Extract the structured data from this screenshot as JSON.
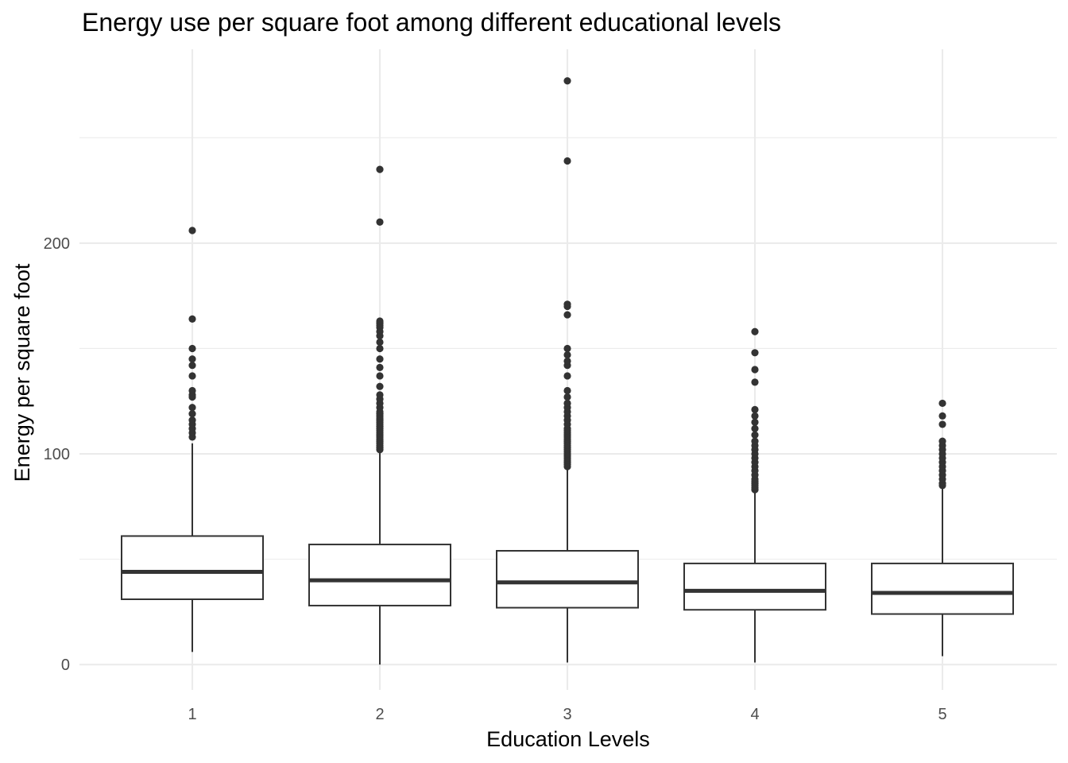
{
  "chart_data": {
    "type": "box",
    "title": "Energy use per square foot among different educational levels",
    "xlabel": "Education Levels",
    "ylabel": "Energy per square foot",
    "ylim": [
      -12,
      292
    ],
    "yticks": [
      0,
      100,
      200
    ],
    "grid": true,
    "colors": {
      "box": "#333333",
      "grid": "#ebebeb",
      "tick": "#4d4d4d"
    },
    "categories": [
      "1",
      "2",
      "3",
      "4",
      "5"
    ],
    "boxes": [
      {
        "category": "1",
        "whisker_low": 6,
        "q1": 31,
        "median": 44,
        "q3": 61,
        "whisker_high": 105,
        "outliers": [
          108,
          110,
          112,
          114,
          116,
          119,
          122,
          127,
          128,
          130,
          137,
          142,
          145,
          150,
          164,
          206
        ]
      },
      {
        "category": "2",
        "whisker_low": 0,
        "q1": 28,
        "median": 40,
        "q3": 57,
        "whisker_high": 101,
        "outliers": [
          102,
          103,
          104,
          105,
          106,
          107,
          108,
          109,
          110,
          111,
          112,
          113,
          114,
          115,
          116,
          117,
          118,
          119,
          120,
          122,
          124,
          126,
          128,
          132,
          137,
          141,
          145,
          150,
          153,
          156,
          158,
          160,
          161,
          162,
          163,
          210,
          235
        ]
      },
      {
        "category": "3",
        "whisker_low": 1,
        "q1": 27,
        "median": 39,
        "q3": 54,
        "whisker_high": 93,
        "outliers": [
          94,
          95,
          96,
          97,
          98,
          99,
          100,
          101,
          102,
          103,
          104,
          105,
          106,
          107,
          108,
          109,
          110,
          111,
          112,
          114,
          116,
          118,
          120,
          122,
          124,
          127,
          130,
          137,
          142,
          144,
          147,
          150,
          166,
          170,
          171,
          239,
          277
        ]
      },
      {
        "category": "4",
        "whisker_low": 1,
        "q1": 26,
        "median": 35,
        "q3": 48,
        "whisker_high": 82,
        "outliers": [
          83,
          84,
          85,
          86,
          87,
          88,
          90,
          92,
          94,
          96,
          98,
          100,
          102,
          104,
          106,
          109,
          112,
          115,
          118,
          121,
          134,
          140,
          148,
          158
        ]
      },
      {
        "category": "5",
        "whisker_low": 4,
        "q1": 24,
        "median": 34,
        "q3": 48,
        "whisker_high": 84,
        "outliers": [
          85,
          86,
          88,
          90,
          92,
          94,
          96,
          98,
          100,
          102,
          104,
          106,
          114,
          118,
          124
        ]
      }
    ]
  }
}
